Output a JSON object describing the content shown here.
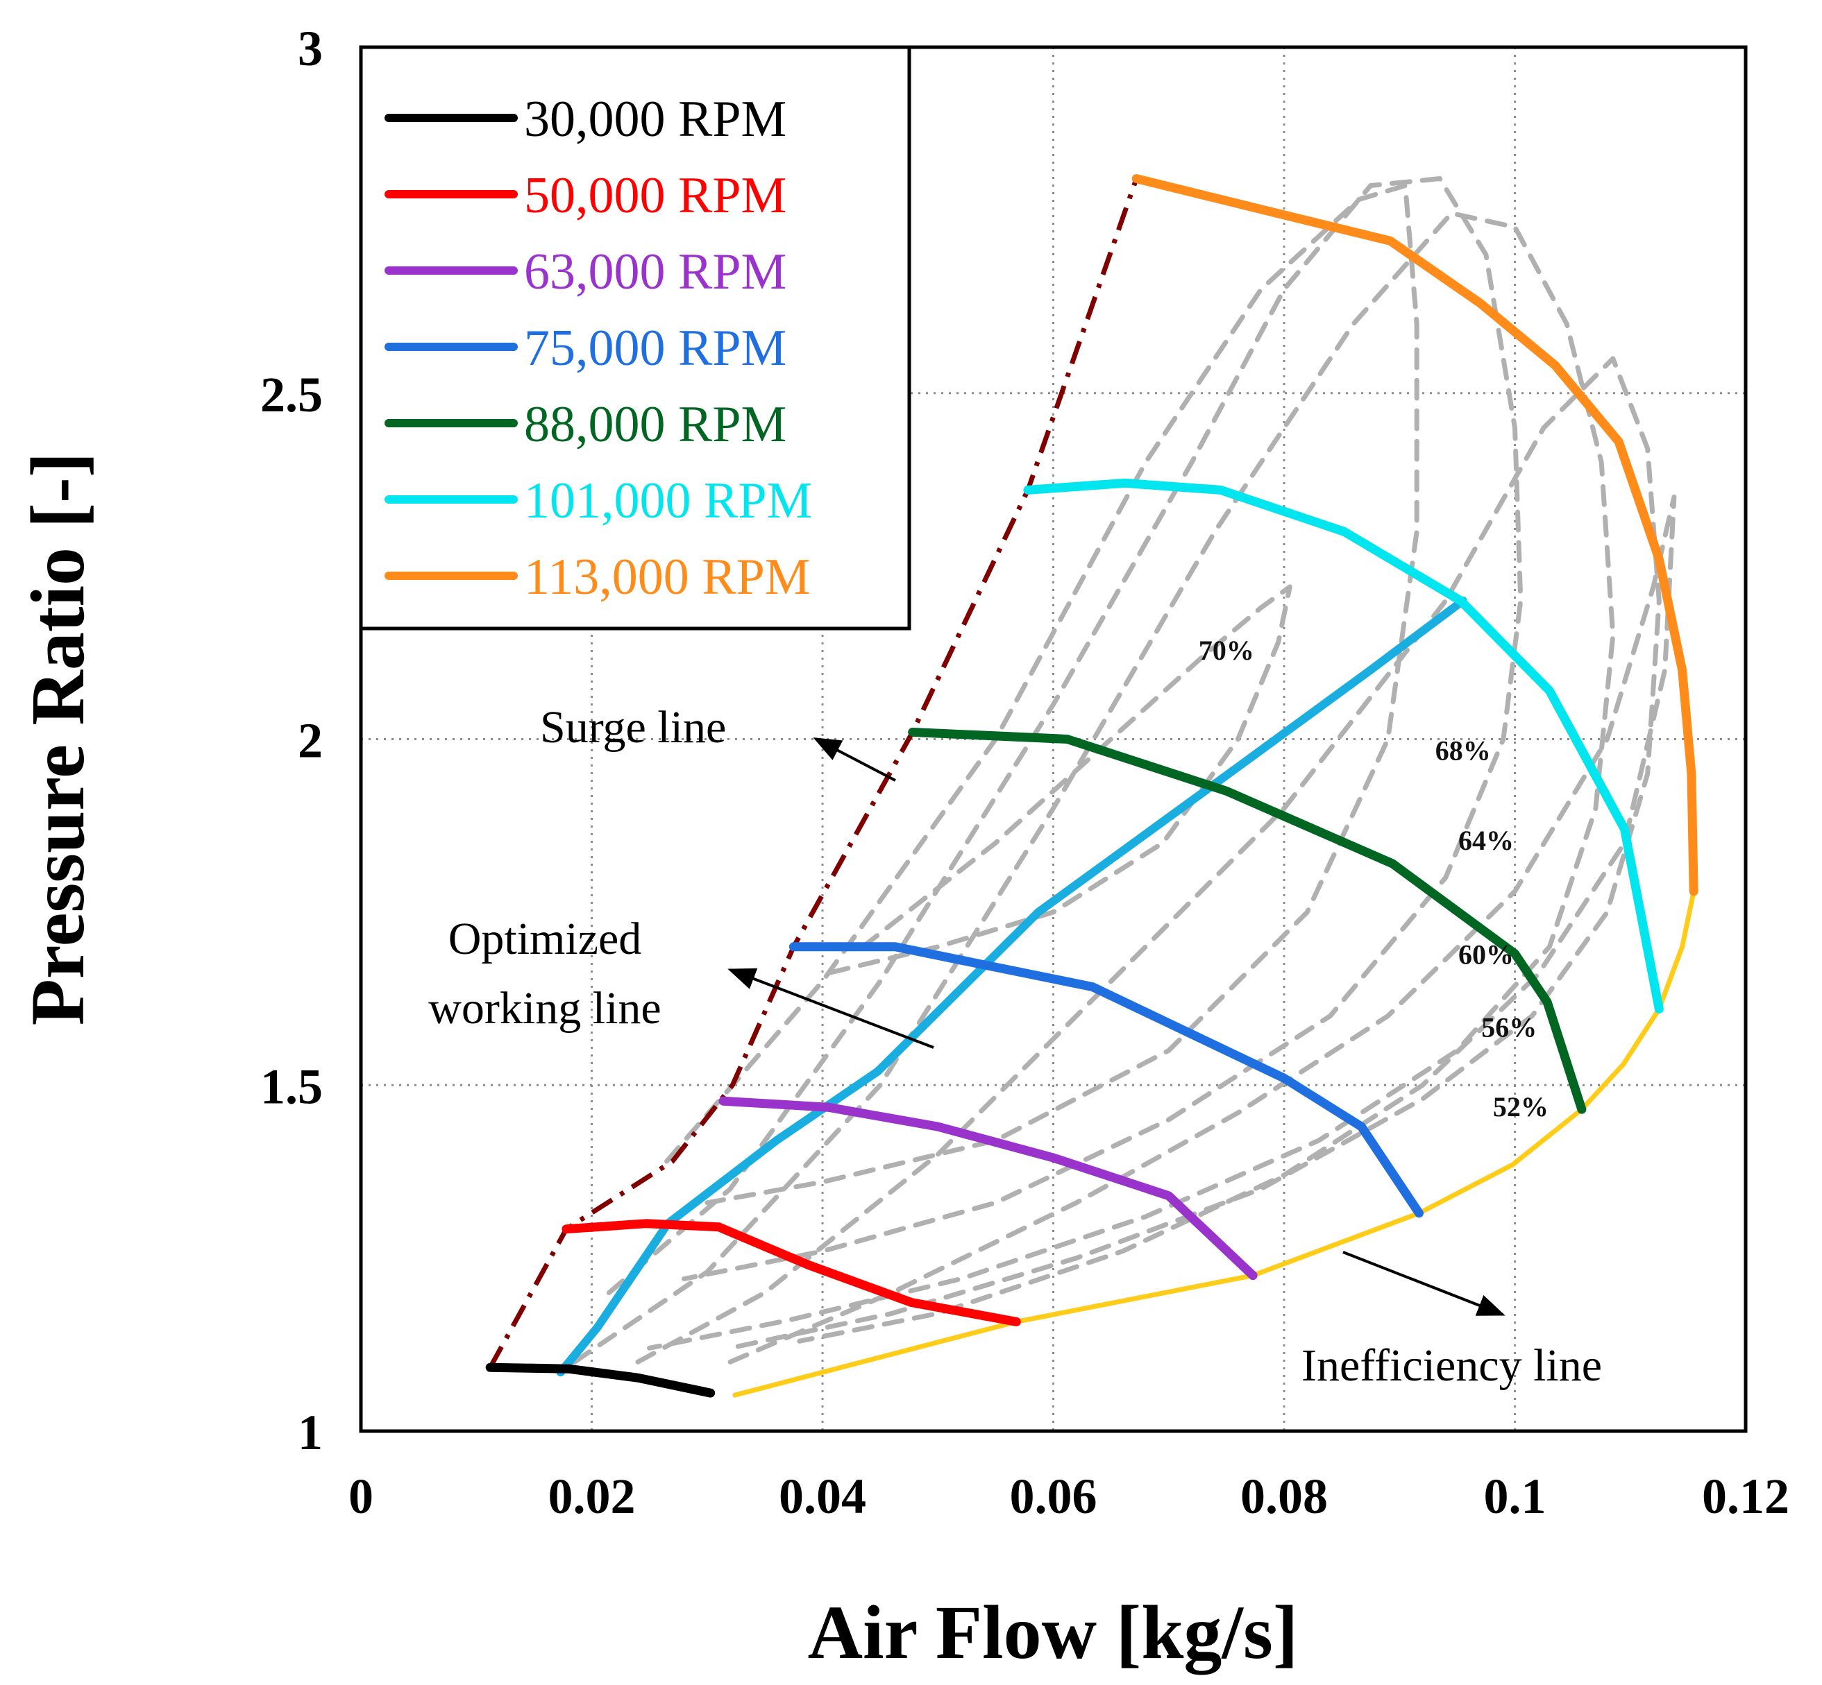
{
  "chart_data": {
    "type": "line",
    "title": "",
    "xlabel": "Air Flow [kg/s]",
    "ylabel": "Pressure Ratio [-]",
    "xlim": [
      0,
      0.12
    ],
    "ylim": [
      1,
      3
    ],
    "x_ticks": [
      0,
      0.02,
      0.04,
      0.06,
      0.08,
      0.1,
      0.12
    ],
    "x_tick_labels": [
      "0",
      "0.02",
      "0.04",
      "0.06",
      "0.08",
      "0.1",
      "0.12"
    ],
    "y_ticks": [
      1,
      1.5,
      2,
      2.5,
      3
    ],
    "y_tick_labels": [
      "1",
      "1.5",
      "2",
      "2.5",
      "3"
    ],
    "grid": true,
    "legend_position": "top-left",
    "series": [
      {
        "name": "30,000 RPM",
        "color": "#000000",
        "x": [
          0.0112,
          0.018,
          0.024,
          0.0303
        ],
        "y": [
          1.092,
          1.09,
          1.077,
          1.055
        ]
      },
      {
        "name": "50,000 RPM",
        "color": "#ff0000",
        "x": [
          0.0178,
          0.0247,
          0.031,
          0.0388,
          0.0477,
          0.0568
        ],
        "y": [
          1.292,
          1.3,
          1.295,
          1.24,
          1.186,
          1.158
        ]
      },
      {
        "name": "63,000 RPM",
        "color": "#9933cc",
        "x": [
          0.0314,
          0.0405,
          0.05,
          0.06,
          0.07,
          0.0773
        ],
        "y": [
          1.477,
          1.468,
          1.44,
          1.395,
          1.34,
          1.225
        ]
      },
      {
        "name": "75,000 RPM",
        "color": "#1f6fe0",
        "x": [
          0.0375,
          0.0463,
          0.0634,
          0.08,
          0.0867,
          0.0917
        ],
        "y": [
          1.7,
          1.7,
          1.642,
          1.51,
          1.44,
          1.315
        ]
      },
      {
        "name": "88,000 RPM",
        "color": "#006622",
        "x": [
          0.0478,
          0.0612,
          0.075,
          0.0894,
          0.1,
          0.1028,
          0.1058
        ],
        "y": [
          2.01,
          2.0,
          1.925,
          1.82,
          1.69,
          1.62,
          1.465
        ]
      },
      {
        "name": "101,000 RPM",
        "color": "#00e5ee",
        "x": [
          0.0578,
          0.0662,
          0.0745,
          0.0852,
          0.0953,
          0.103,
          0.1095,
          0.1125
        ],
        "y": [
          2.36,
          2.37,
          2.36,
          2.3,
          2.2,
          2.07,
          1.87,
          1.61
        ]
      },
      {
        "name": "113,000 RPM",
        "color": "#ff8c1a",
        "x": [
          0.0672,
          0.0794,
          0.0892,
          0.097,
          0.1035,
          0.109,
          0.1125,
          0.1145,
          0.1153,
          0.1155
        ],
        "y": [
          2.81,
          2.76,
          2.72,
          2.63,
          2.54,
          2.43,
          2.26,
          2.1,
          1.95,
          1.78
        ]
      }
    ],
    "surge_line": {
      "label": "Surge line",
      "color": "#800000",
      "x": [
        0.0112,
        0.0178,
        0.027,
        0.0322,
        0.0375,
        0.0478,
        0.0578,
        0.0672
      ],
      "y": [
        1.092,
        1.292,
        1.39,
        1.5,
        1.7,
        2.01,
        2.36,
        2.81
      ]
    },
    "inefficiency_line": {
      "label": "Inefficiency line",
      "color": "#ffcc1a",
      "x": [
        0.0324,
        0.0568,
        0.0773,
        0.0917,
        0.0998,
        0.1058,
        0.1094,
        0.1125,
        0.1145,
        0.1155
      ],
      "y": [
        1.052,
        1.158,
        1.225,
        1.315,
        1.385,
        1.465,
        1.53,
        1.61,
        1.7,
        1.78
      ]
    },
    "working_line": {
      "label": "Optimized working line",
      "color": "#1aaee0",
      "x": [
        0.0173,
        0.0205,
        0.0266,
        0.036,
        0.0448,
        0.0587,
        0.0752,
        0.0875,
        0.0955
      ],
      "y": [
        1.085,
        1.15,
        1.3,
        1.42,
        1.52,
        1.75,
        1.95,
        2.1,
        2.2
      ]
    },
    "efficiency_labels": [
      "70%",
      "68%",
      "64%",
      "60%",
      "56%",
      "52%"
    ],
    "efficiency_label_positions": [
      [
        0.075,
        2.115
      ],
      [
        0.0955,
        1.97
      ],
      [
        0.0975,
        1.84
      ],
      [
        0.0975,
        1.675
      ],
      [
        0.0995,
        1.57
      ],
      [
        0.1005,
        1.455
      ]
    ],
    "efficiency_contours": [
      {
        "label": "70%",
        "x": [
          0.0435,
          0.055,
          0.065,
          0.073,
          0.078,
          0.0805,
          0.0795,
          0.076,
          0.0695,
          0.06,
          0.05,
          0.04
        ],
        "y": [
          1.7,
          1.85,
          2.0,
          2.12,
          2.19,
          2.22,
          2.14,
          2.0,
          1.85,
          1.75,
          1.7,
          1.66
        ]
      },
      {
        "label": "68%",
        "x": [
          0.0265,
          0.04,
          0.055,
          0.068,
          0.078,
          0.0865,
          0.0905,
          0.0915,
          0.0915,
          0.089,
          0.082,
          0.07,
          0.055,
          0.04,
          0.03
        ],
        "y": [
          1.39,
          1.65,
          2.0,
          2.4,
          2.65,
          2.78,
          2.8,
          2.6,
          2.3,
          2.0,
          1.75,
          1.55,
          1.42,
          1.36,
          1.33
        ]
      },
      {
        "label": "64%",
        "x": [
          0.0215,
          0.032,
          0.045,
          0.06,
          0.072,
          0.08,
          0.0875,
          0.0935,
          0.0975,
          0.1,
          0.1005,
          0.099,
          0.094,
          0.084,
          0.07,
          0.055,
          0.04,
          0.028
        ],
        "y": [
          1.2,
          1.35,
          1.65,
          2.05,
          2.4,
          2.65,
          2.8,
          2.81,
          2.7,
          2.45,
          2.2,
          2.0,
          1.8,
          1.6,
          1.45,
          1.33,
          1.26,
          1.22
        ]
      },
      {
        "label": "60%",
        "x": [
          0.0185,
          0.03,
          0.045,
          0.06,
          0.074,
          0.086,
          0.0945,
          0.1,
          0.1045,
          0.1075,
          0.1085,
          0.107,
          0.103,
          0.095,
          0.083,
          0.068,
          0.052,
          0.037,
          0.025
        ],
        "y": [
          1.1,
          1.23,
          1.5,
          1.9,
          2.3,
          2.6,
          2.76,
          2.74,
          2.6,
          2.4,
          2.15,
          1.9,
          1.7,
          1.55,
          1.42,
          1.31,
          1.22,
          1.16,
          1.12
        ]
      },
      {
        "label": "56%",
        "x": [
          0.024,
          0.035,
          0.05,
          0.065,
          0.08,
          0.094,
          0.1025,
          0.1085,
          0.1115,
          0.1125,
          0.1115,
          0.108,
          0.1015,
          0.092,
          0.078,
          0.062,
          0.046,
          0.032
        ],
        "y": [
          1.1,
          1.2,
          1.4,
          1.65,
          1.9,
          2.2,
          2.45,
          2.55,
          2.42,
          2.2,
          1.95,
          1.75,
          1.6,
          1.48,
          1.35,
          1.25,
          1.17,
          1.12
        ]
      },
      {
        "label": "52%",
        "x": [
          0.032,
          0.046,
          0.062,
          0.076,
          0.089,
          0.1,
          0.108,
          0.112,
          0.1138,
          0.113,
          0.1095,
          0.102,
          0.092,
          0.08,
          0.066,
          0.05,
          0.038
        ],
        "y": [
          1.1,
          1.2,
          1.33,
          1.46,
          1.6,
          1.78,
          2.0,
          2.22,
          2.35,
          2.1,
          1.85,
          1.66,
          1.5,
          1.37,
          1.26,
          1.17,
          1.13
        ]
      }
    ]
  }
}
